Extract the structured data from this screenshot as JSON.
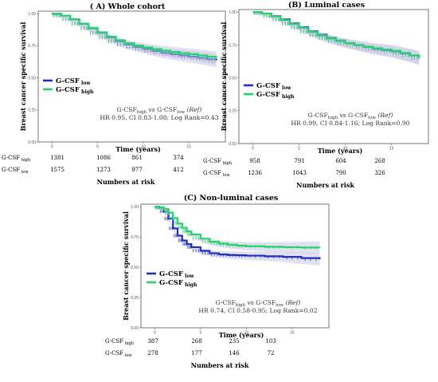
{
  "colors": {
    "low": "#1f2fbf",
    "high": "#22d46a",
    "ci": "#c9c9e6",
    "frame": "#555555"
  },
  "risk_header": "Numbers at risk",
  "chart_data": [
    {
      "type": "line",
      "title": "( A) Whole cohort",
      "xlabel": "Time (years)",
      "ylabel": "Breast cancer specific survival",
      "xlim": [
        -1.5,
        19
      ],
      "ylim": [
        0,
        1.02
      ],
      "x_ticks": [
        "0",
        "5",
        "10",
        "15"
      ],
      "y_ticks": [
        "0.00",
        "0.25",
        "0.50",
        "0.75",
        "1.00"
      ],
      "legend": {
        "placement": "middle-left",
        "entries": [
          [
            "G-CSF",
            "low"
          ],
          [
            "G-CSF",
            "high"
          ]
        ]
      },
      "stat": {
        "line1_a": "G-CSF",
        "line1_a_sub": "high",
        "line1_b": " vs ",
        "line1_c": "G-CSF",
        "line1_c_sub": "low",
        "line1_d": " (Ref)",
        "line2": "HR 0.95, CI 0.83-1.08; Log Rank=0.43"
      },
      "series": [
        {
          "name": "G-CSF low",
          "key": "low",
          "x": [
            0,
            1,
            2,
            3,
            4,
            5,
            6,
            7,
            8,
            9,
            10,
            11,
            12,
            13,
            14,
            15,
            16,
            17,
            18
          ],
          "y": [
            1.0,
            0.985,
            0.955,
            0.92,
            0.885,
            0.85,
            0.815,
            0.785,
            0.76,
            0.74,
            0.725,
            0.71,
            0.695,
            0.685,
            0.675,
            0.665,
            0.655,
            0.645,
            0.635
          ]
        },
        {
          "name": "G-CSF high",
          "key": "high",
          "x": [
            0,
            1,
            2,
            3,
            4,
            5,
            6,
            7,
            8,
            9,
            10,
            11,
            12,
            13,
            14,
            15,
            16,
            17,
            18
          ],
          "y": [
            1.0,
            0.985,
            0.957,
            0.923,
            0.89,
            0.855,
            0.822,
            0.793,
            0.77,
            0.752,
            0.737,
            0.724,
            0.712,
            0.702,
            0.693,
            0.685,
            0.675,
            0.665,
            0.655
          ]
        }
      ],
      "risk": [
        {
          "label": "G-CSF",
          "sub": "high",
          "values": [
            "1381",
            "1086",
            "861",
            "374"
          ]
        },
        {
          "label": "G-CSF",
          "sub": "low",
          "values": [
            "1575",
            "1273",
            "977",
            "412"
          ]
        }
      ]
    },
    {
      "type": "line",
      "title": "(B) Luminal cases",
      "xlabel": "Time (years)",
      "ylabel": "Breast cancer specific survival",
      "xlim": [
        -1.5,
        19
      ],
      "ylim": [
        0,
        1.02
      ],
      "x_ticks": [
        "0",
        "5",
        "10",
        "15"
      ],
      "y_ticks": [
        "0.00",
        "0.25",
        "0.50",
        "0.75",
        "1.00"
      ],
      "legend": {
        "placement": "middle-left",
        "entries": [
          [
            "G-CSF",
            "low"
          ],
          [
            "G-CSF",
            "high"
          ]
        ]
      },
      "stat": {
        "line1_a": "G-CSF",
        "line1_a_sub": "high",
        "line1_b": " vs ",
        "line1_c": "G-CSF",
        "line1_c_sub": "low",
        "line1_d": " (Ref)",
        "line2": "HR 0.99, CI 0.84-1.16; Log Rank=0.90"
      },
      "series": [
        {
          "name": "G-CSF low",
          "key": "low",
          "x": [
            0,
            1,
            2,
            3,
            4,
            5,
            6,
            7,
            8,
            9,
            10,
            11,
            12,
            13,
            14,
            15,
            16,
            17,
            18
          ],
          "y": [
            1.0,
            0.99,
            0.97,
            0.945,
            0.915,
            0.885,
            0.855,
            0.83,
            0.805,
            0.785,
            0.765,
            0.75,
            0.735,
            0.72,
            0.71,
            0.7,
            0.685,
            0.67,
            0.655
          ]
        },
        {
          "name": "G-CSF high",
          "key": "high",
          "x": [
            0,
            1,
            2,
            3,
            4,
            5,
            6,
            7,
            8,
            9,
            10,
            11,
            12,
            13,
            14,
            15,
            16,
            17,
            18
          ],
          "y": [
            1.0,
            0.99,
            0.968,
            0.94,
            0.91,
            0.88,
            0.85,
            0.823,
            0.8,
            0.78,
            0.763,
            0.75,
            0.738,
            0.726,
            0.716,
            0.706,
            0.69,
            0.672,
            0.648
          ]
        }
      ],
      "risk": [
        {
          "label": "G-CSF",
          "sub": "high",
          "values": [
            "958",
            "791",
            "604",
            "268"
          ]
        },
        {
          "label": "G-CSF",
          "sub": "low",
          "values": [
            "1236",
            "1043",
            "790",
            "326"
          ]
        }
      ]
    },
    {
      "type": "line",
      "title": "(C) Non-luminal cases",
      "xlabel": "Time (years)",
      "ylabel": "Breast cancer specific survival",
      "xlim": [
        -1.5,
        19
      ],
      "ylim": [
        0,
        1.02
      ],
      "x_ticks": [
        "0",
        "5",
        "10",
        "15"
      ],
      "y_ticks": [
        "0.00",
        "0.25",
        "0.50",
        "0.75",
        "1.00"
      ],
      "legend": {
        "placement": "middle-left",
        "entries": [
          [
            "G-CSF",
            "low"
          ],
          [
            "G-CSF",
            "high"
          ]
        ]
      },
      "stat": {
        "line1_a": "G-CSF",
        "line1_a_sub": "high",
        "line1_b": " vs ",
        "line1_c": "G-CSF",
        "line1_c_sub": "low",
        "line1_d": " (Ref)",
        "line2": "HR 0.74, CI 0.58-0.95; Log Rank=0.02"
      },
      "series": [
        {
          "name": "G-CSF low",
          "key": "low",
          "x": [
            0,
            0.5,
            1,
            1.5,
            2,
            2.5,
            3,
            3.5,
            4,
            5,
            6,
            7,
            8,
            9,
            10,
            12,
            14,
            16,
            18
          ],
          "y": [
            1.0,
            0.99,
            0.96,
            0.9,
            0.82,
            0.76,
            0.72,
            0.69,
            0.665,
            0.635,
            0.615,
            0.605,
            0.6,
            0.598,
            0.595,
            0.59,
            0.585,
            0.575,
            0.565
          ]
        },
        {
          "name": "G-CSF high",
          "key": "high",
          "x": [
            0,
            0.5,
            1,
            1.5,
            2,
            2.5,
            3,
            3.5,
            4,
            5,
            6,
            7,
            8,
            9,
            10,
            12,
            14,
            16,
            18
          ],
          "y": [
            1.0,
            0.995,
            0.98,
            0.95,
            0.905,
            0.86,
            0.825,
            0.795,
            0.77,
            0.735,
            0.71,
            0.695,
            0.685,
            0.678,
            0.673,
            0.668,
            0.665,
            0.662,
            0.66
          ]
        }
      ],
      "risk": [
        {
          "label": "G-CSF",
          "sub": "high",
          "values": [
            "387",
            "268",
            "235",
            "103"
          ]
        },
        {
          "label": "G-CSF",
          "sub": "low",
          "values": [
            "278",
            "177",
            "146",
            "72"
          ]
        }
      ]
    }
  ]
}
